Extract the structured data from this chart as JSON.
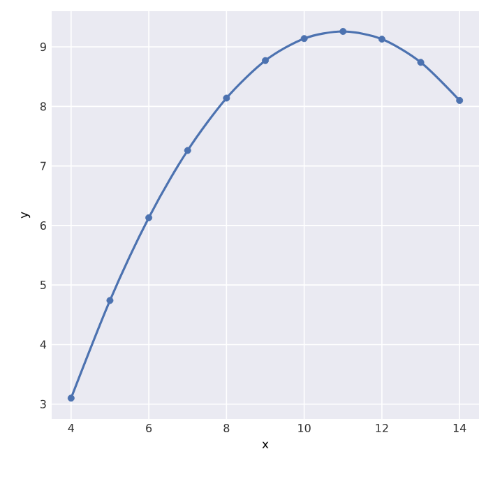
{
  "chart_data": {
    "type": "scatter",
    "xlabel": "x",
    "ylabel": "y",
    "xlim": [
      3.5,
      14.5
    ],
    "ylim": [
      2.75,
      9.6
    ],
    "xticks": [
      4,
      6,
      8,
      10,
      12,
      14
    ],
    "yticks": [
      3,
      4,
      5,
      6,
      7,
      8,
      9
    ],
    "grid": true,
    "series": [
      {
        "marker": "circle",
        "color": "#4c72b0",
        "x": [
          4,
          5,
          6,
          7,
          8,
          9,
          10,
          11,
          12,
          13,
          14
        ],
        "values": [
          3.1,
          4.74,
          6.13,
          7.26,
          8.14,
          8.77,
          9.14,
          9.26,
          9.13,
          8.74,
          8.1
        ]
      },
      {
        "type": "line",
        "marker": "none",
        "line_style": "solid",
        "color": "#4c72b0",
        "x": [
          4,
          5,
          6,
          7,
          8,
          9,
          10,
          11,
          12,
          13,
          14
        ],
        "values": [
          3.1,
          4.74,
          6.13,
          7.26,
          8.14,
          8.77,
          9.14,
          9.26,
          9.13,
          8.74,
          8.1
        ]
      }
    ]
  }
}
